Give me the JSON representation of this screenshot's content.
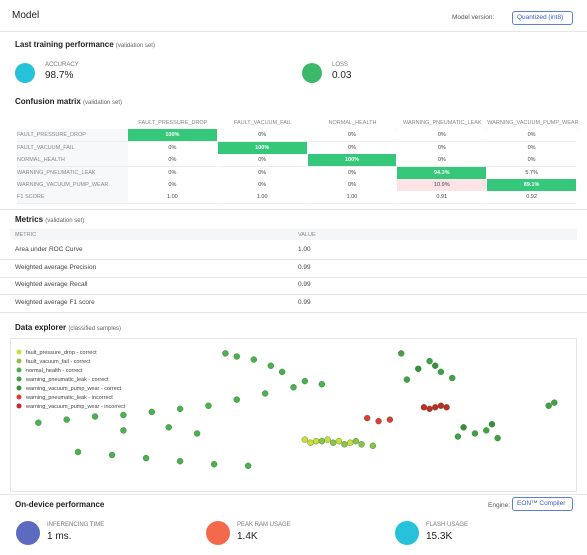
{
  "header": {
    "title": "Model",
    "version_label": "Model version:",
    "version_select": "Quantized (int8)"
  },
  "training": {
    "title": "Last training performance",
    "note": "(validation set)",
    "stats": [
      {
        "label": "ACCURACY",
        "value": "98.7%"
      },
      {
        "label": "LOSS",
        "value": "0.03"
      }
    ]
  },
  "confusion_matrix": {
    "title": "Confusion matrix",
    "note": "(validation set)",
    "columns": [
      "FAULT_PRESSURE_DROP",
      "FAULT_VACUUM_FAIL",
      "NORMAL_HEALTH",
      "WARNING_PNEUMATIC_LEAK",
      "WARNING_VACUUM_PUMP_WEAR"
    ],
    "rows": [
      {
        "label": "FAULT_PRESSURE_DROP",
        "cells": [
          "100%",
          "0%",
          "0%",
          "0%",
          "0%"
        ]
      },
      {
        "label": "FAULT_VACUUM_FAIL",
        "cells": [
          "0%",
          "100%",
          "0%",
          "0%",
          "0%"
        ]
      },
      {
        "label": "NORMAL_HEALTH",
        "cells": [
          "0%",
          "0%",
          "100%",
          "0%",
          "0%"
        ]
      },
      {
        "label": "WARNING_PNEUMATIC_LEAK",
        "cells": [
          "0%",
          "0%",
          "0%",
          "94.3%",
          "5.7%"
        ]
      },
      {
        "label": "WARNING_VACUUM_PUMP_WEAR",
        "cells": [
          "0%",
          "0%",
          "0%",
          "10.9%",
          "89.1%"
        ]
      },
      {
        "label": "F1 SCORE",
        "cells": [
          "1.00",
          "1.00",
          "1.00",
          "0.91",
          "0.92"
        ]
      }
    ]
  },
  "metrics": {
    "title": "Metrics",
    "note": "(validation set)",
    "headers": [
      "METRIC",
      "VALUE"
    ],
    "rows": [
      [
        "Area under ROC Curve",
        "1.00"
      ],
      [
        "Weighted average Precision",
        "0.99"
      ],
      [
        "Weighted average Recall",
        "0.99"
      ],
      [
        "Weighted average F1 score",
        "0.99"
      ]
    ]
  },
  "data_explorer": {
    "title": "Data explorer",
    "note": "(classified samples)",
    "series": [
      {
        "name": "fault_pressure_drop - correct",
        "color": "#cddc39",
        "x": [
          52,
          54,
          56,
          53,
          58,
          60
        ],
        "y": [
          66,
          67,
          66,
          68,
          67,
          68
        ]
      },
      {
        "name": "fault_vacuum_fail - correct",
        "color": "#8bc34a",
        "x": [
          55,
          57,
          59,
          61,
          62,
          64
        ],
        "y": [
          67,
          68,
          69,
          67,
          69,
          70
        ]
      },
      {
        "name": "normal_health - correct",
        "color": "#4caf50",
        "x": [
          5,
          10,
          15,
          20,
          25,
          30,
          35,
          40,
          45,
          50,
          12,
          18,
          24,
          30,
          36,
          42,
          38,
          40,
          43,
          46,
          48,
          52,
          55,
          20,
          28,
          33
        ],
        "y": [
          55,
          53,
          51,
          50,
          48,
          46,
          44,
          40,
          36,
          32,
          74,
          76,
          78,
          80,
          82,
          83,
          10,
          12,
          14,
          18,
          22,
          28,
          30,
          60,
          58,
          62
        ]
      },
      {
        "name": "warning_pneumatic_leak - correct",
        "color": "#43a047",
        "x": [
          69,
          74,
          76,
          78,
          70,
          79,
          82,
          84,
          86,
          95,
          96
        ],
        "y": [
          10,
          15,
          22,
          26,
          27,
          64,
          62,
          60,
          65,
          44,
          42
        ]
      },
      {
        "name": "warning_vacuum_pump_wear - correct",
        "color": "#388e3c",
        "x": [
          72,
          75,
          80,
          85
        ],
        "y": [
          20,
          18,
          58,
          56
        ]
      },
      {
        "name": "warning_pneumatic_leak - incorrect",
        "color": "#e53935",
        "x": [
          63,
          65,
          67
        ],
        "y": [
          52,
          54,
          53
        ]
      },
      {
        "name": "warning_vacuum_pump_wear - incorrect",
        "color": "#c62828",
        "x": [
          73,
          74,
          75,
          76,
          77
        ],
        "y": [
          45,
          46,
          45,
          44,
          45
        ]
      }
    ]
  },
  "on_device": {
    "title": "On-device performance",
    "engine_label": "Engine:",
    "engine_select": "EON™ Compiler",
    "stats": [
      {
        "label": "INFERENCING TIME",
        "value": "1 ms."
      },
      {
        "label": "PEAK RAM USAGE",
        "value": "1.4K"
      },
      {
        "label": "FLASH USAGE",
        "value": "15.3K"
      }
    ]
  }
}
